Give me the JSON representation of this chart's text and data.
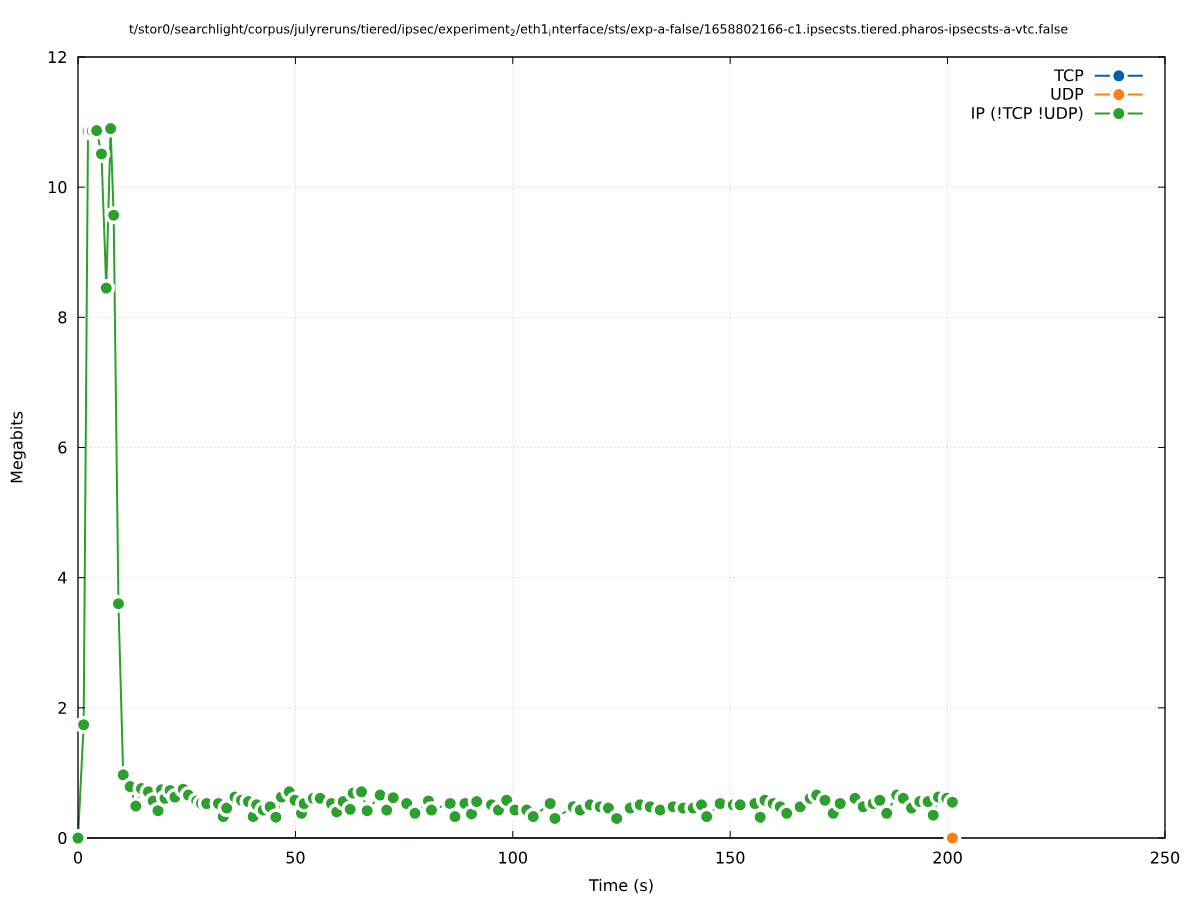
{
  "chart_data": {
    "type": "line",
    "title": "t/stor0/searchlight/corpus/julyreruns/tiered/ipsec/experiment$_{2}$/eth1$_{i}$nterface/sts/exp-a-false/1658802166-c1.ipsecsts.tiered.pharos-ipsecsts-a-vtc.false",
    "xlabel": "Time (s)",
    "ylabel": "Megabits",
    "xlim": [
      0,
      250
    ],
    "ylim": [
      0,
      12
    ],
    "xticks": [
      0,
      50,
      100,
      150,
      200,
      250
    ],
    "yticks": [
      0,
      2,
      4,
      6,
      8,
      10,
      12
    ],
    "grid": true,
    "legend": "top right",
    "marker": "circle",
    "line_style": "solid",
    "series": [
      {
        "name": "TCP",
        "color": "#0060ad"
      },
      {
        "name": "UDP",
        "color": "#ff7f0e",
        "x": [
          0,
          201.1
        ],
        "values": [
          0,
          0
        ]
      },
      {
        "name": "IP (!TCP !UDP)",
        "color": "#2ca02c",
        "x": [
          0,
          1.3,
          2.3,
          3.3,
          4.3,
          5.4,
          6.5,
          7.5,
          8.2,
          9.3,
          10.4,
          12.0,
          13.3,
          14.6,
          16.2,
          17.3,
          18.4,
          19.2,
          20.0,
          21.2,
          22.3,
          24.2,
          25.4,
          27.3,
          28.4,
          29.6,
          32.3,
          33.4,
          34.2,
          36.1,
          37.6,
          39.2,
          40.3,
          41.1,
          42.6,
          44.2,
          45.5,
          46.8,
          48.6,
          49.9,
          51.4,
          52.0,
          54.1,
          55.7,
          58.3,
          59.5,
          61.0,
          62.6,
          63.3,
          65.2,
          66.5,
          69.5,
          71.0,
          72.5,
          75.6,
          77.5,
          80.6,
          81.3,
          85.6,
          86.7,
          89.0,
          90.5,
          91.7,
          95.1,
          96.7,
          98.6,
          100.5,
          103.2,
          104.7,
          108.6,
          109.7,
          113.9,
          115.5,
          117.8,
          120.1,
          122.0,
          123.9,
          127.0,
          129.3,
          131.6,
          133.9,
          136.9,
          139.2,
          141.5,
          143.4,
          144.6,
          147.7,
          150.7,
          152.3,
          155.7,
          156.9,
          158.0,
          159.9,
          161.5,
          163.0,
          166.1,
          168.4,
          169.9,
          171.8,
          173.7,
          175.3,
          178.7,
          180.6,
          182.9,
          184.4,
          186.0,
          188.3,
          189.8,
          191.7,
          193.6,
          195.5,
          196.7,
          197.9,
          199.8,
          201.1
        ],
        "values": [
          0,
          1.74,
          10.86,
          10.86,
          10.87,
          10.51,
          8.45,
          10.9,
          9.57,
          3.6,
          0.97,
          0.79,
          0.49,
          0.76,
          0.71,
          0.57,
          0.42,
          0.74,
          0.61,
          0.73,
          0.63,
          0.75,
          0.66,
          0.57,
          0.53,
          0.53,
          0.53,
          0.33,
          0.46,
          0.63,
          0.58,
          0.56,
          0.33,
          0.51,
          0.43,
          0.48,
          0.32,
          0.63,
          0.71,
          0.58,
          0.38,
          0.53,
          0.61,
          0.61,
          0.53,
          0.4,
          0.56,
          0.44,
          0.69,
          0.71,
          0.42,
          0.66,
          0.43,
          0.62,
          0.53,
          0.38,
          0.57,
          0.43,
          0.53,
          0.33,
          0.53,
          0.37,
          0.56,
          0.51,
          0.43,
          0.58,
          0.43,
          0.43,
          0.33,
          0.53,
          0.3,
          0.48,
          0.43,
          0.51,
          0.48,
          0.46,
          0.3,
          0.46,
          0.51,
          0.48,
          0.43,
          0.48,
          0.46,
          0.46,
          0.51,
          0.33,
          0.53,
          0.51,
          0.51,
          0.53,
          0.32,
          0.58,
          0.53,
          0.48,
          0.38,
          0.48,
          0.61,
          0.66,
          0.58,
          0.38,
          0.53,
          0.61,
          0.48,
          0.53,
          0.58,
          0.38,
          0.66,
          0.61,
          0.46,
          0.56,
          0.56,
          0.35,
          0.63,
          0.61,
          0.55
        ]
      }
    ]
  }
}
